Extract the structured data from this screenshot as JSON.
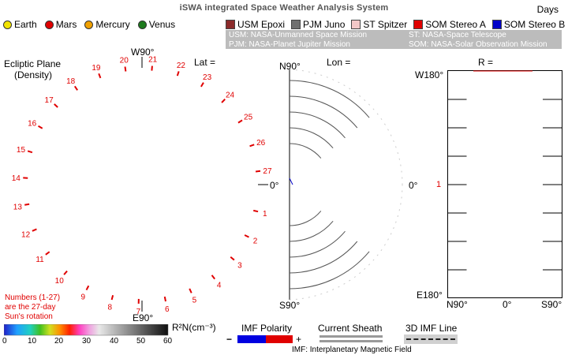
{
  "header": {
    "title": "iSWA   integrated Space Weather Analysis System",
    "days_label": "Days"
  },
  "planets": [
    {
      "name": "Earth",
      "color": "#f2e400"
    },
    {
      "name": "Mars",
      "color": "#e00000"
    },
    {
      "name": "Mercury",
      "color": "#f0a000"
    },
    {
      "name": "Venus",
      "color": "#1d7a1d"
    }
  ],
  "missions": [
    {
      "label": "USM Epoxi",
      "color": "#8b2a2a"
    },
    {
      "label": "PJM Juno",
      "color": "#707070"
    },
    {
      "label": "ST Spitzer",
      "color": "#f3c7c7"
    },
    {
      "label": "SOM Stereo A",
      "color": "#e00000"
    },
    {
      "label": "SOM Stereo B",
      "color": "#0000c8"
    }
  ],
  "mission_legend": {
    "usm": "USM: NASA-Unmanned Space Mission",
    "st": "ST: NASA-Space Telescope",
    "pjm": "PJM: NASA-Planet Jupiter Mission",
    "som": "SOM: NASA-Solar Observation Mission"
  },
  "ecliptic": {
    "title_line1": "Ecliptic Plane",
    "title_line2": "(Density)",
    "lat_label": "Lat =",
    "w90": "W90°",
    "e90": "E90°",
    "zero": "0°",
    "rotation_numbers": [
      "1",
      "2",
      "3",
      "4",
      "5",
      "6",
      "7",
      "8",
      "9",
      "10",
      "11",
      "12",
      "13",
      "14",
      "15",
      "16",
      "17",
      "18",
      "19",
      "20",
      "21",
      "22",
      "23",
      "24",
      "25",
      "26",
      "27"
    ],
    "note_line1": "Numbers (1-27)",
    "note_line2": "are the 27-day",
    "note_line3": "Sun's rotation"
  },
  "lon_panel": {
    "label": "Lon =",
    "top": "N90°",
    "bottom": "S90°"
  },
  "r_panel": {
    "label": "R =",
    "top": "W180°",
    "middle": "0°",
    "bottom": "E180°",
    "marker": "1",
    "x_left": "N90°",
    "x_mid": "0°",
    "x_right": "S90°"
  },
  "density_scale": {
    "label": "R²N(cm⁻³)",
    "ticks": [
      "0",
      "10",
      "20",
      "30",
      "40",
      "50",
      "60"
    ]
  },
  "imf": {
    "polarity_label": "IMF Polarity",
    "minus": "−",
    "plus": "+",
    "sheath_label": "Current Sheath",
    "line_label": "3D IMF Line",
    "footer": "IMF: Interplanetary Magnetic Field"
  }
}
